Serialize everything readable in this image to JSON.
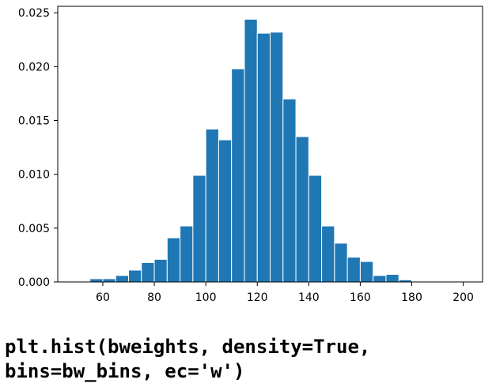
{
  "chart_data": {
    "type": "bar",
    "bin_edges": [
      50,
      55,
      60,
      65,
      70,
      75,
      80,
      85,
      90,
      95,
      100,
      105,
      110,
      115,
      120,
      125,
      130,
      135,
      140,
      145,
      150,
      155,
      160,
      165,
      170,
      175,
      180,
      185,
      190,
      195,
      200
    ],
    "values": [
      0,
      0.0003,
      0.0003,
      0.0006,
      0.0011,
      0.0018,
      0.0021,
      0.0041,
      0.0052,
      0.0099,
      0.0142,
      0.0132,
      0.0198,
      0.0244,
      0.0231,
      0.0232,
      0.017,
      0.0135,
      0.0099,
      0.0052,
      0.0036,
      0.0023,
      0.0019,
      0.0006,
      0.0007,
      0.0002,
      0,
      0,
      0,
      0
    ],
    "xlim": [
      42.5,
      207.5
    ],
    "ylim": [
      0,
      0.0256
    ],
    "x_ticks": [
      60,
      80,
      100,
      120,
      140,
      160,
      180,
      200
    ],
    "x_tick_labels": [
      "60",
      "80",
      "100",
      "120",
      "140",
      "160",
      "180",
      "200"
    ],
    "y_ticks": [
      0,
      0.005,
      0.01,
      0.015,
      0.02,
      0.025
    ],
    "y_tick_labels": [
      "0.000",
      "0.005",
      "0.010",
      "0.015",
      "0.020",
      "0.025"
    ],
    "title": "",
    "xlabel": "",
    "ylabel": "",
    "bar_color": "#1f77b4",
    "edge_color": "#ffffff",
    "grid": false
  },
  "caption": {
    "line1": "plt.hist(bweights, density=True,",
    "line2": "bins=bw_bins, ec='w')"
  }
}
